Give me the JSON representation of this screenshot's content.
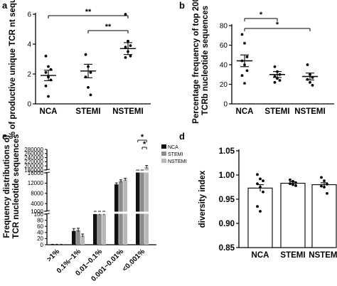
{
  "chart_data": [
    {
      "panel": "a",
      "type": "scatter",
      "ylabel": "% of productive unique TCR nt sequence",
      "categories": [
        "NCA",
        "STEMI",
        "NSTEMI"
      ],
      "ylim": [
        0,
        6
      ],
      "yticks": [
        0,
        2,
        4,
        6
      ],
      "points": [
        [
          3.2,
          2.5,
          2.3,
          2.1,
          1.8,
          1.6,
          1.2,
          0.5
        ],
        [
          3.3,
          2.5,
          2.1,
          1.8,
          1.1,
          0.6
        ],
        [
          6.0,
          4.2,
          3.9,
          3.8,
          3.5,
          3.2,
          3.1
        ]
      ],
      "mean": [
        1.9,
        2.2,
        3.7
      ],
      "sem": [
        0.35,
        0.45,
        0.4
      ],
      "significance": [
        {
          "from": "NCA",
          "to": "NSTEMI",
          "label": "**"
        },
        {
          "from": "STEMI",
          "to": "NSTEMI",
          "label": "**"
        }
      ]
    },
    {
      "panel": "b",
      "type": "scatter",
      "ylabel": "Percentage frequency of top 200 TCRb nucleotide sequences",
      "categories": [
        "NCA",
        "STEMI",
        "NSTEMI"
      ],
      "ylim": [
        0,
        80
      ],
      "yticks": [
        0,
        20,
        40,
        60,
        80
      ],
      "points": [
        [
          71,
          62,
          48,
          44,
          40,
          34,
          29,
          21
        ],
        [
          38,
          33,
          30,
          28,
          26,
          24,
          22
        ],
        [
          40,
          30,
          27,
          25,
          22,
          19
        ]
      ],
      "mean": [
        44,
        30,
        28
      ],
      "sem": [
        6,
        3,
        3.5
      ],
      "significance": [
        {
          "from": "NCA",
          "to": "STEMI",
          "label": "*"
        },
        {
          "from": "NCA",
          "to": "NSTEMI",
          "label": "*"
        }
      ]
    },
    {
      "panel": "c",
      "type": "bar",
      "ylabel": "Frequency distributions of TCR nucleotide sequences",
      "categories": [
        ">1%",
        "0.1%~1%",
        "0.01~0.1%",
        "0.001~0.01%",
        "<0.001%"
      ],
      "series": [
        {
          "name": "NCA",
          "color": "#111111",
          "values": [
            1,
            45,
            100,
            11500,
            170000
          ],
          "err": [
            0.5,
            8,
            3,
            600,
            6000
          ]
        },
        {
          "name": "STEMI",
          "color": "#8c8c8c",
          "values": [
            1,
            48,
            100,
            12800,
            165000
          ],
          "err": [
            0.5,
            6,
            3,
            500,
            6000
          ]
        },
        {
          "name": "NSTEMI",
          "color": "#b8b8b8",
          "values": [
            1,
            30,
            100,
            13400,
            195000
          ],
          "err": [
            0.5,
            5,
            3,
            500,
            7000
          ]
        }
      ],
      "yticks": [
        "0",
        "20",
        "40",
        "60",
        "80",
        "100",
        "1000",
        "4000",
        "8000",
        "12000",
        "16000",
        "180000",
        "200000",
        "220000",
        "240000",
        "260000",
        "280000"
      ],
      "legend": "top-right",
      "significance": [
        {
          "category": "<0.001%",
          "from": "NCA",
          "to": "NSTEMI",
          "label": "*"
        },
        {
          "category": "<0.001%",
          "from": "STEMI",
          "to": "NSTEMI",
          "label": "*"
        }
      ]
    },
    {
      "panel": "d",
      "type": "bar",
      "ylabel": "diversity index",
      "categories": [
        "NCA",
        "STEMI",
        "NSTEMI"
      ],
      "ylim": [
        0.85,
        1.05
      ],
      "yticks": [
        "0.85",
        "0.90",
        "0.95",
        "1.00",
        "1.05"
      ],
      "values": [
        0.973,
        0.983,
        0.98
      ],
      "sem": [
        0.007,
        0.003,
        0.004
      ],
      "points": [
        [
          1.001,
          0.992,
          0.988,
          0.982,
          0.975,
          0.965,
          0.935,
          0.925
        ],
        [
          0.99,
          0.987,
          0.984,
          0.982,
          0.98,
          0.978
        ],
        [
          0.995,
          0.988,
          0.981,
          0.977,
          0.975,
          0.962
        ]
      ]
    }
  ]
}
